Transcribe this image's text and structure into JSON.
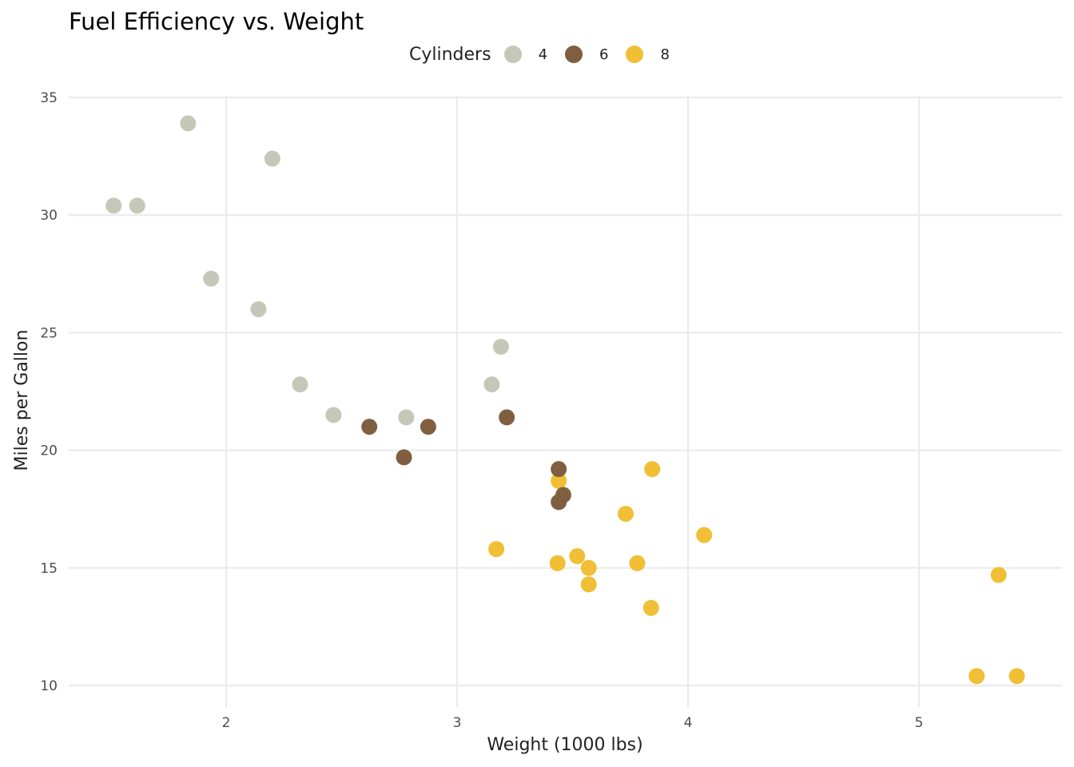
{
  "chart_data": {
    "type": "scatter",
    "title": "Fuel Efficiency vs. Weight",
    "xlabel": "Weight (1000 lbs)",
    "ylabel": "Miles per Gallon",
    "xlim": [
      1.32,
      5.62
    ],
    "ylim": [
      9.3,
      35.6
    ],
    "xticks": [
      2,
      3,
      4,
      5
    ],
    "yticks": [
      10,
      15,
      20,
      25,
      30,
      35
    ],
    "grid": true,
    "legend": {
      "title": "Cylinders",
      "position": "top",
      "entries": [
        {
          "label": "4",
          "color": "#C5C8B8"
        },
        {
          "label": "6",
          "color": "#7F5F3F"
        },
        {
          "label": "8",
          "color": "#F1BF35"
        }
      ]
    },
    "points": [
      {
        "x": 2.62,
        "y": 21.0,
        "group": "6"
      },
      {
        "x": 2.875,
        "y": 21.0,
        "group": "6"
      },
      {
        "x": 2.32,
        "y": 22.8,
        "group": "4"
      },
      {
        "x": 3.215,
        "y": 21.4,
        "group": "6"
      },
      {
        "x": 3.44,
        "y": 18.7,
        "group": "8"
      },
      {
        "x": 3.46,
        "y": 18.1,
        "group": "6"
      },
      {
        "x": 3.57,
        "y": 14.3,
        "group": "8"
      },
      {
        "x": 3.19,
        "y": 24.4,
        "group": "4"
      },
      {
        "x": 3.15,
        "y": 22.8,
        "group": "4"
      },
      {
        "x": 3.44,
        "y": 19.2,
        "group": "6"
      },
      {
        "x": 3.44,
        "y": 17.8,
        "group": "6"
      },
      {
        "x": 4.07,
        "y": 16.4,
        "group": "8"
      },
      {
        "x": 3.73,
        "y": 17.3,
        "group": "8"
      },
      {
        "x": 3.78,
        "y": 15.2,
        "group": "8"
      },
      {
        "x": 5.25,
        "y": 10.4,
        "group": "8"
      },
      {
        "x": 5.424,
        "y": 10.4,
        "group": "8"
      },
      {
        "x": 5.345,
        "y": 14.7,
        "group": "8"
      },
      {
        "x": 2.2,
        "y": 32.4,
        "group": "4"
      },
      {
        "x": 1.615,
        "y": 30.4,
        "group": "4"
      },
      {
        "x": 1.835,
        "y": 33.9,
        "group": "4"
      },
      {
        "x": 2.465,
        "y": 21.5,
        "group": "4"
      },
      {
        "x": 3.52,
        "y": 15.5,
        "group": "8"
      },
      {
        "x": 3.435,
        "y": 15.2,
        "group": "8"
      },
      {
        "x": 3.84,
        "y": 13.3,
        "group": "8"
      },
      {
        "x": 3.845,
        "y": 19.2,
        "group": "8"
      },
      {
        "x": 1.935,
        "y": 27.3,
        "group": "4"
      },
      {
        "x": 2.14,
        "y": 26.0,
        "group": "4"
      },
      {
        "x": 1.513,
        "y": 30.4,
        "group": "4"
      },
      {
        "x": 3.17,
        "y": 15.8,
        "group": "8"
      },
      {
        "x": 2.77,
        "y": 19.7,
        "group": "6"
      },
      {
        "x": 3.57,
        "y": 15.0,
        "group": "8"
      },
      {
        "x": 2.78,
        "y": 21.4,
        "group": "4"
      }
    ]
  }
}
